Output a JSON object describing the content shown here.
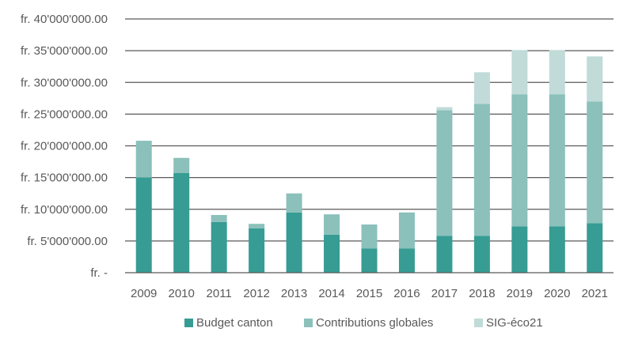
{
  "chart_data": {
    "type": "bar",
    "stacked": true,
    "title": "",
    "xlabel": "",
    "ylabel": "",
    "ylim": [
      0,
      40000000
    ],
    "grid": true,
    "legend_position": "bottom",
    "categories": [
      "2009",
      "2010",
      "2011",
      "2012",
      "2013",
      "2014",
      "2015",
      "2016",
      "2017",
      "2018",
      "2019",
      "2020",
      "2021"
    ],
    "y_ticks": [
      {
        "value": 0,
        "label": "fr. -"
      },
      {
        "value": 5000000,
        "label": "fr. 5'000'000.00"
      },
      {
        "value": 10000000,
        "label": "fr. 10'000'000.00"
      },
      {
        "value": 15000000,
        "label": "fr. 15'000'000.00"
      },
      {
        "value": 20000000,
        "label": "fr. 20'000'000.00"
      },
      {
        "value": 25000000,
        "label": "fr. 25'000'000.00"
      },
      {
        "value": 30000000,
        "label": "fr. 30'000'000.00"
      },
      {
        "value": 35000000,
        "label": "fr. 35'000'000.00"
      },
      {
        "value": 40000000,
        "label": "fr. 40'000'000.00"
      }
    ],
    "series": [
      {
        "name": "Budget canton",
        "color": "#369c94",
        "values": [
          15000000,
          15700000,
          8000000,
          7000000,
          9500000,
          6000000,
          3800000,
          3800000,
          5800000,
          5800000,
          7300000,
          7300000,
          7800000
        ]
      },
      {
        "name": "Contributions globales",
        "color": "#8bc0bb",
        "values": [
          5800000,
          2400000,
          1100000,
          700000,
          3000000,
          3200000,
          3800000,
          5700000,
          19800000,
          20800000,
          20800000,
          20800000,
          19200000
        ]
      },
      {
        "name": "SIG-éco21",
        "color": "#c0dbd8",
        "values": [
          0,
          0,
          0,
          0,
          0,
          0,
          0,
          0,
          500000,
          5000000,
          7000000,
          7000000,
          7100000
        ]
      }
    ]
  }
}
